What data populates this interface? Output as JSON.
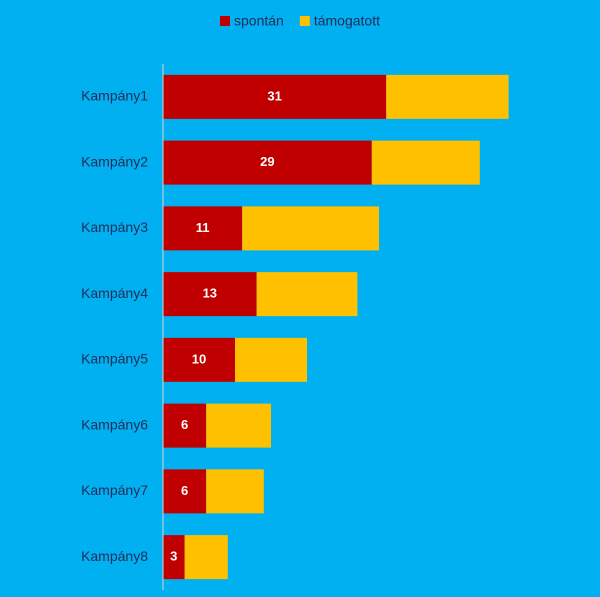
{
  "chart_data": {
    "type": "stacked-bar-horizontal",
    "categories": [
      "Kampány1",
      "Kampány2",
      "Kampány3",
      "Kampány4",
      "Kampány5",
      "Kampány6",
      "Kampány7",
      "Kampány8"
    ],
    "series": [
      {
        "name": "spontán",
        "color": "#c00000",
        "values": [
          31,
          29,
          11,
          13,
          10,
          6,
          6,
          3
        ],
        "show_labels": true
      },
      {
        "name": "támogatott",
        "color": "#ffc000",
        "values": [
          17,
          15,
          19,
          14,
          10,
          9,
          8,
          6
        ],
        "show_labels": false
      }
    ],
    "xlim": [
      0,
      60
    ],
    "legend": "top",
    "background": "#00b0f0"
  }
}
